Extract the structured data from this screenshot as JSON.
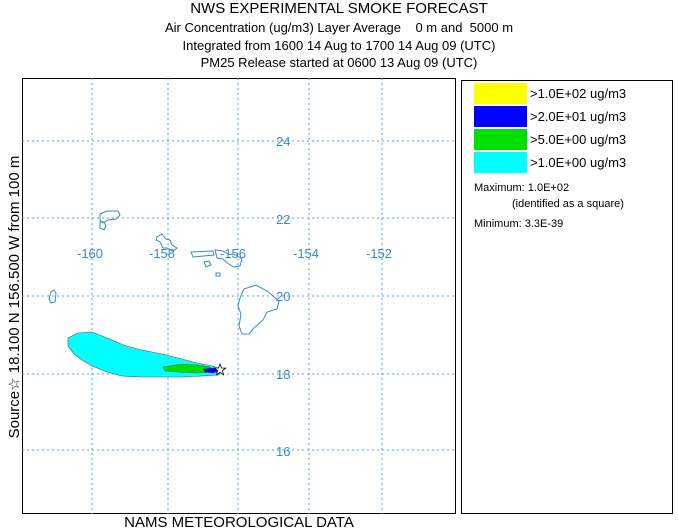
{
  "header": {
    "title": "NWS EXPERIMENTAL SMOKE FORECAST",
    "line2": "Air Concentration (ug/m3) Layer Average    0 m and  5000 m",
    "line3": "Integrated from 1600 14 Aug to 1700 14 Aug 09 (UTC)",
    "line4": "PM25 Release started at 0600 13 Aug 09 (UTC)"
  },
  "side_label": "Source☆ 18.100  N 156.500  W     from  100 m",
  "footer": "NAMS METEOROLOGICAL DATA",
  "map": {
    "lat_labels": [
      "24",
      "22",
      "20",
      "18",
      "16"
    ],
    "lon_labels": [
      "-160",
      "-158",
      "-156",
      "-154",
      "-152"
    ],
    "source_marker": "star",
    "colors": {
      "grid": "#5aa0d8",
      "coast": "#3a8ac8",
      "label": "#3a8ac8"
    }
  },
  "legend": {
    "items": [
      {
        "label": ">1.0E+02 ug/m3",
        "color": "#ffff00"
      },
      {
        "label": ">2.0E+01 ug/m3",
        "color": "#0000ff"
      },
      {
        "label": ">5.0E+00 ug/m3",
        "color": "#00e000"
      },
      {
        "label": ">1.0E+00 ug/m3",
        "color": "#00ffff"
      }
    ],
    "maximum": "Maximum: 1.0E+02",
    "max_note": "(identified as a square)",
    "minimum": "Minimum: 3.3E-39"
  }
}
